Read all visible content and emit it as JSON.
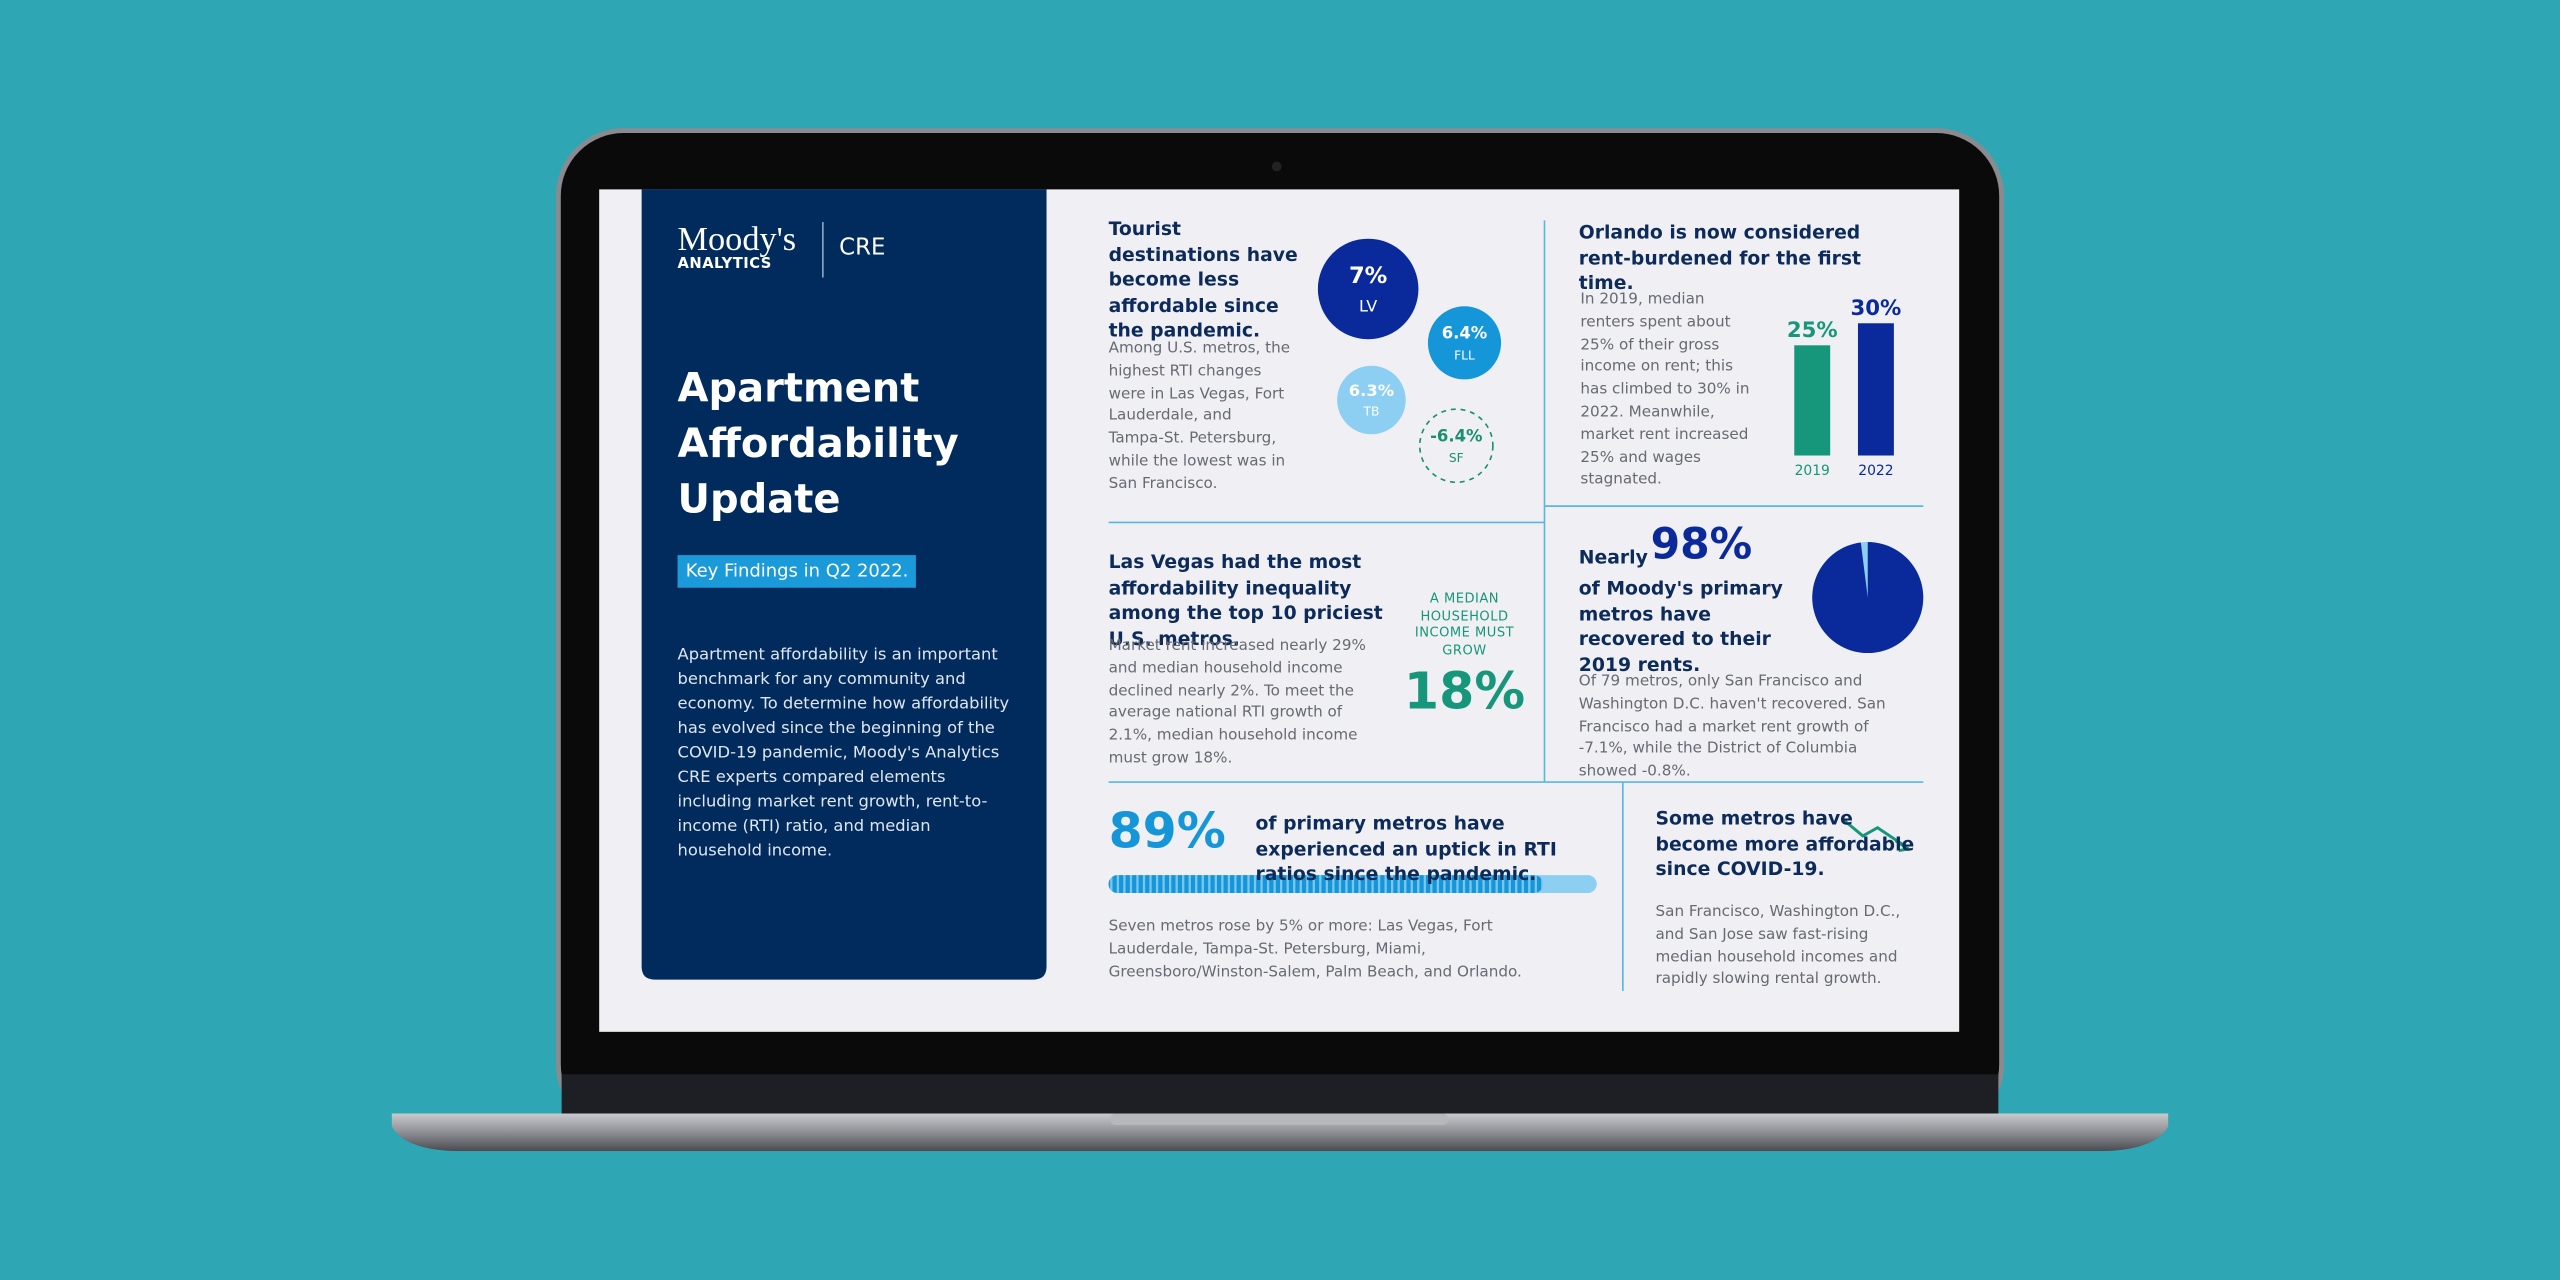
{
  "logo": {
    "brand": "Moody's",
    "sub": "ANALYTICS",
    "product": "CRE"
  },
  "title": "Apartment Affordability Update",
  "tag": "Key Findings in Q2 2022.",
  "intro": "Apartment affordability is an important benchmark for any community and economy. To determine how affordability has evolved since the beginning of the COVID-19 pandemic, Moody's Analytics CRE experts compared elements including market rent growth, rent-to-income (RTI) ratio, and median household income.",
  "tourist": {
    "heading": "Tourist destinations have become less affordable since the pandemic.",
    "body": "Among U.S. metros, the highest RTI changes were in Las Vegas, Fort Lauderdale, and Tampa-St. Petersburg, while the lowest was in San Francisco.",
    "bubbles": [
      {
        "value": 7,
        "label": "7%",
        "metro": "LV",
        "color": "#0a2a9c"
      },
      {
        "value": 6.4,
        "label": "6.4%",
        "metro": "FLL",
        "color": "#1496d9"
      },
      {
        "value": 6.3,
        "label": "6.3%",
        "metro": "TB",
        "color": "#8ccff2"
      },
      {
        "value": -6.4,
        "label": "-6.4%",
        "metro": "SF",
        "color": "#1a9070",
        "dashed": true
      }
    ]
  },
  "orlando": {
    "heading": "Orlando is now considered rent-burdened for the first time.",
    "body": "In 2019, median renters spent about 25% of their gross income on rent; this has climbed to 30% in 2022. Meanwhile, market rent increased 25% and wages stagnated.",
    "chart": {
      "type": "bar",
      "categories": [
        "2019",
        "2022"
      ],
      "values": [
        25,
        30
      ],
      "value_labels": [
        "25%",
        "30%"
      ],
      "colors": [
        "#16967a",
        "#0a2a9c"
      ]
    }
  },
  "inequality": {
    "heading": "Las Vegas had the most affordability inequality among the top 10 priciest U.S. metros.",
    "body": "Market rent increased nearly 29% and median household income declined nearly 2%. To meet the average national RTI growth of 2.1%, median household income must grow 18%.",
    "callout_caption": "A MEDIAN HOUSEHOLD INCOME MUST GROW",
    "callout_value": "18%"
  },
  "recovered": {
    "lead": "Nearly",
    "value": 98,
    "label": "98%",
    "color": "#0a2a9c",
    "rest_color": "#8ccff2",
    "heading": "of Moody's primary metros have recovered to their 2019 rents.",
    "body": "Of 79 metros, only San Francisco and Washington D.C. haven't recovered. San Francisco had a market rent growth of -7.1%, while the District of Columbia showed -0.8%."
  },
  "uptick": {
    "value": 89,
    "label": "89%",
    "color": "#1496d9",
    "heading": "of primary metros have experienced an uptick in RTI ratios since the pandemic.",
    "body": "Seven metros rose by 5% or more: Las Vegas, Fort Lauderdale, Tampa-St. Petersburg, Miami, Greensboro/Winston-Salem, Palm Beach, and Orlando."
  },
  "covid": {
    "heading": "Some metros have become more affordable since COVID-19.",
    "body": "San Francisco, Washington D.C., and San Jose saw fast-rising median household incomes and rapidly slowing rental growth."
  }
}
